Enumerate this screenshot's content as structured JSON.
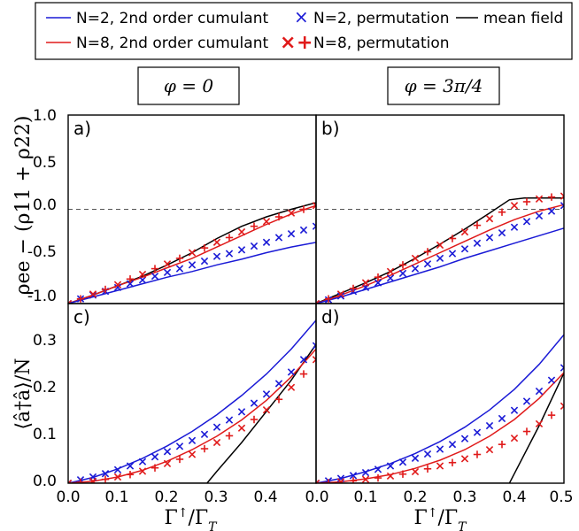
{
  "legend": {
    "entries": [
      {
        "label": "N=2, 2nd order cumulant",
        "kind": "line",
        "color": "#1a1ad6"
      },
      {
        "label": "N=2, permutation",
        "kind": "x",
        "color": "#1a1ad6"
      },
      {
        "label": "mean field",
        "kind": "line",
        "color": "#000000"
      },
      {
        "label": "N=8, 2nd order cumulant",
        "kind": "line",
        "color": "#e01a1a"
      },
      {
        "label": "N=8, permutation",
        "kind": "x+",
        "color": "#e01a1a"
      }
    ]
  },
  "columns": [
    {
      "phi_label": "φ = 0"
    },
    {
      "phi_label": "φ = 3π/4"
    }
  ],
  "axes": {
    "xlabel": "Γ↑/Γ_T",
    "xlabel_main": "Γ",
    "xlabel_sup": "↑",
    "xlabel_den": "/Γ",
    "xlabel_sub": "T",
    "ylabel_top": "ρee − (ρ11 + ρ22)",
    "ylabel_bottom": "⟨â†â⟩/N",
    "xticks_left": [
      "0.0",
      "0.1",
      "0.2",
      "0.3",
      "0.4",
      "0.0"
    ],
    "xticks_right": [
      "0.1",
      "0.2",
      "0.3",
      "0.4",
      "0.5"
    ],
    "yticks_top": [
      "1.0",
      "0.5",
      "0.0",
      "-0.5",
      "-1.0"
    ],
    "yticks_bottom": [
      "0.3",
      "0.2",
      "0.1",
      "0.0"
    ]
  },
  "chart_data": [
    {
      "panel": "a)",
      "type": "line",
      "xlim": [
        0,
        0.5
      ],
      "ylim": [
        -1.0,
        1.0
      ],
      "reference_line": 0.0,
      "series": [
        {
          "name": "mean field",
          "color": "#000000",
          "x": [
            0,
            0.05,
            0.1,
            0.15,
            0.2,
            0.25,
            0.28,
            0.3,
            0.35,
            0.4,
            0.45,
            0.5
          ],
          "y": [
            -1.0,
            -0.91,
            -0.81,
            -0.71,
            -0.59,
            -0.46,
            -0.37,
            -0.31,
            -0.18,
            -0.08,
            0.0,
            0.07
          ]
        },
        {
          "name": "N=8, 2nd order cumulant",
          "color": "#e01a1a",
          "x": [
            0,
            0.05,
            0.1,
            0.15,
            0.2,
            0.25,
            0.3,
            0.35,
            0.4,
            0.45,
            0.5
          ],
          "y": [
            -1.0,
            -0.91,
            -0.81,
            -0.72,
            -0.62,
            -0.52,
            -0.4,
            -0.28,
            -0.16,
            -0.05,
            0.04
          ]
        },
        {
          "name": "N=2, 2nd order cumulant",
          "color": "#1a1ad6",
          "x": [
            0,
            0.05,
            0.1,
            0.15,
            0.2,
            0.25,
            0.3,
            0.35,
            0.4,
            0.45,
            0.5
          ],
          "y": [
            -1.0,
            -0.93,
            -0.86,
            -0.79,
            -0.72,
            -0.66,
            -0.59,
            -0.53,
            -0.46,
            -0.4,
            -0.35
          ]
        },
        {
          "name": "N=2, permutation",
          "color": "#1a1ad6",
          "marker": "x",
          "x": [
            0.0,
            0.025,
            0.05,
            0.075,
            0.1,
            0.125,
            0.15,
            0.175,
            0.2,
            0.225,
            0.25,
            0.275,
            0.3,
            0.325,
            0.35,
            0.375,
            0.4,
            0.425,
            0.45,
            0.475,
            0.5
          ],
          "y": [
            -1.0,
            -0.95,
            -0.91,
            -0.87,
            -0.83,
            -0.79,
            -0.75,
            -0.71,
            -0.67,
            -0.63,
            -0.59,
            -0.55,
            -0.5,
            -0.47,
            -0.43,
            -0.39,
            -0.35,
            -0.3,
            -0.26,
            -0.22,
            -0.18
          ]
        },
        {
          "name": "N=8, permutation",
          "color": "#e01a1a",
          "marker": "x+",
          "x": [
            0.0,
            0.025,
            0.05,
            0.075,
            0.1,
            0.125,
            0.15,
            0.175,
            0.2,
            0.225,
            0.25,
            0.275,
            0.3,
            0.325,
            0.35,
            0.375,
            0.4,
            0.425,
            0.45,
            0.475,
            0.5
          ],
          "y": [
            -1.0,
            -0.95,
            -0.9,
            -0.85,
            -0.8,
            -0.74,
            -0.69,
            -0.63,
            -0.58,
            -0.52,
            -0.46,
            -0.41,
            -0.35,
            -0.3,
            -0.24,
            -0.18,
            -0.13,
            -0.08,
            -0.04,
            0.0,
            0.04
          ]
        }
      ]
    },
    {
      "panel": "b)",
      "type": "line",
      "xlim": [
        0,
        0.5
      ],
      "ylim": [
        -1.0,
        1.0
      ],
      "reference_line": 0.0,
      "series": [
        {
          "name": "mean field",
          "color": "#000000",
          "x": [
            0,
            0.05,
            0.1,
            0.15,
            0.2,
            0.25,
            0.3,
            0.35,
            0.39,
            0.42,
            0.45,
            0.5
          ],
          "y": [
            -1.0,
            -0.89,
            -0.78,
            -0.66,
            -0.52,
            -0.37,
            -0.21,
            -0.04,
            0.1,
            0.12,
            0.12,
            0.12
          ]
        },
        {
          "name": "N=8, 2nd order cumulant",
          "color": "#e01a1a",
          "x": [
            0,
            0.05,
            0.1,
            0.15,
            0.2,
            0.25,
            0.3,
            0.35,
            0.4,
            0.45,
            0.5
          ],
          "y": [
            -1.0,
            -0.91,
            -0.81,
            -0.7,
            -0.58,
            -0.46,
            -0.34,
            -0.22,
            -0.11,
            -0.02,
            0.05
          ]
        },
        {
          "name": "N=2, 2nd order cumulant",
          "color": "#1a1ad6",
          "x": [
            0,
            0.05,
            0.1,
            0.15,
            0.2,
            0.25,
            0.3,
            0.35,
            0.4,
            0.45,
            0.5
          ],
          "y": [
            -1.0,
            -0.93,
            -0.85,
            -0.77,
            -0.69,
            -0.61,
            -0.52,
            -0.44,
            -0.36,
            -0.28,
            -0.2
          ]
        },
        {
          "name": "N=2, permutation",
          "color": "#1a1ad6",
          "marker": "x",
          "x": [
            0.0,
            0.025,
            0.05,
            0.075,
            0.1,
            0.125,
            0.15,
            0.175,
            0.2,
            0.225,
            0.25,
            0.275,
            0.3,
            0.325,
            0.35,
            0.375,
            0.4,
            0.425,
            0.45,
            0.475,
            0.5
          ],
          "y": [
            -1.0,
            -0.96,
            -0.92,
            -0.87,
            -0.83,
            -0.78,
            -0.73,
            -0.68,
            -0.63,
            -0.58,
            -0.52,
            -0.47,
            -0.42,
            -0.36,
            -0.3,
            -0.25,
            -0.19,
            -0.13,
            -0.07,
            -0.02,
            0.04
          ]
        },
        {
          "name": "N=8, permutation",
          "color": "#e01a1a",
          "marker": "x+",
          "x": [
            0.0,
            0.025,
            0.05,
            0.075,
            0.1,
            0.125,
            0.15,
            0.175,
            0.2,
            0.225,
            0.25,
            0.275,
            0.3,
            0.325,
            0.35,
            0.375,
            0.4,
            0.425,
            0.45,
            0.475,
            0.5
          ],
          "y": [
            -1.0,
            -0.95,
            -0.9,
            -0.84,
            -0.78,
            -0.72,
            -0.66,
            -0.59,
            -0.52,
            -0.45,
            -0.38,
            -0.31,
            -0.24,
            -0.17,
            -0.1,
            -0.03,
            0.04,
            0.08,
            0.11,
            0.13,
            0.14
          ]
        }
      ]
    },
    {
      "panel": "c)",
      "type": "line",
      "xlim": [
        0,
        0.5
      ],
      "ylim": [
        0.0,
        0.375
      ],
      "series": [
        {
          "name": "mean field",
          "color": "#000000",
          "x": [
            0.0,
            0.28,
            0.3,
            0.35,
            0.4,
            0.45,
            0.5
          ],
          "y": [
            0.0,
            0.0,
            0.025,
            0.085,
            0.15,
            0.215,
            0.29
          ]
        },
        {
          "name": "N=2, 2nd order cumulant",
          "color": "#1a1ad6",
          "x": [
            0,
            0.05,
            0.1,
            0.15,
            0.2,
            0.25,
            0.3,
            0.35,
            0.4,
            0.45,
            0.5
          ],
          "y": [
            0.0,
            0.012,
            0.03,
            0.052,
            0.078,
            0.108,
            0.143,
            0.183,
            0.228,
            0.28,
            0.34
          ]
        },
        {
          "name": "N=8, 2nd order cumulant",
          "color": "#e01a1a",
          "x": [
            0,
            0.05,
            0.1,
            0.15,
            0.2,
            0.25,
            0.3,
            0.35,
            0.4,
            0.45,
            0.5
          ],
          "y": [
            0.0,
            0.004,
            0.013,
            0.027,
            0.046,
            0.07,
            0.098,
            0.132,
            0.173,
            0.222,
            0.28
          ]
        },
        {
          "name": "N=2, permutation",
          "color": "#1a1ad6",
          "marker": "x",
          "x": [
            0.0,
            0.025,
            0.05,
            0.075,
            0.1,
            0.125,
            0.15,
            0.175,
            0.2,
            0.225,
            0.25,
            0.275,
            0.3,
            0.325,
            0.35,
            0.375,
            0.4,
            0.425,
            0.45,
            0.475,
            0.5
          ],
          "y": [
            0.0,
            0.007,
            0.013,
            0.02,
            0.028,
            0.036,
            0.045,
            0.055,
            0.066,
            0.077,
            0.089,
            0.102,
            0.117,
            0.132,
            0.149,
            0.167,
            0.186,
            0.208,
            0.232,
            0.258,
            0.287
          ]
        },
        {
          "name": "N=8, permutation",
          "color": "#e01a1a",
          "marker": "x+",
          "x": [
            0.0,
            0.025,
            0.05,
            0.075,
            0.1,
            0.125,
            0.15,
            0.175,
            0.2,
            0.225,
            0.25,
            0.275,
            0.3,
            0.325,
            0.35,
            0.375,
            0.4,
            0.425,
            0.45,
            0.475,
            0.5
          ],
          "y": [
            0.0,
            0.002,
            0.004,
            0.008,
            0.013,
            0.018,
            0.025,
            0.032,
            0.041,
            0.05,
            0.06,
            0.072,
            0.085,
            0.099,
            0.115,
            0.133,
            0.153,
            0.175,
            0.2,
            0.228,
            0.258
          ]
        }
      ]
    },
    {
      "panel": "d)",
      "type": "line",
      "xlim": [
        0,
        0.5
      ],
      "ylim": [
        0.0,
        0.375
      ],
      "series": [
        {
          "name": "mean field",
          "color": "#000000",
          "x": [
            0.0,
            0.39,
            0.4,
            0.45,
            0.5
          ],
          "y": [
            0.0,
            0.0,
            0.02,
            0.12,
            0.23
          ]
        },
        {
          "name": "N=2, 2nd order cumulant",
          "color": "#1a1ad6",
          "x": [
            0,
            0.05,
            0.1,
            0.15,
            0.2,
            0.25,
            0.3,
            0.35,
            0.4,
            0.45,
            0.5
          ],
          "y": [
            0.0,
            0.01,
            0.024,
            0.041,
            0.062,
            0.087,
            0.117,
            0.153,
            0.196,
            0.248,
            0.31
          ]
        },
        {
          "name": "N=8, 2nd order cumulant",
          "color": "#e01a1a",
          "x": [
            0,
            0.05,
            0.1,
            0.15,
            0.2,
            0.25,
            0.3,
            0.35,
            0.4,
            0.45,
            0.5
          ],
          "y": [
            0.0,
            0.003,
            0.009,
            0.018,
            0.031,
            0.048,
            0.07,
            0.098,
            0.133,
            0.177,
            0.231
          ]
        },
        {
          "name": "N=2, permutation",
          "color": "#1a1ad6",
          "marker": "x",
          "x": [
            0.0,
            0.025,
            0.05,
            0.075,
            0.1,
            0.125,
            0.15,
            0.175,
            0.2,
            0.225,
            0.25,
            0.275,
            0.3,
            0.325,
            0.35,
            0.375,
            0.4,
            0.425,
            0.45,
            0.475,
            0.5
          ],
          "y": [
            0.0,
            0.005,
            0.01,
            0.016,
            0.022,
            0.029,
            0.036,
            0.044,
            0.052,
            0.061,
            0.071,
            0.081,
            0.093,
            0.106,
            0.12,
            0.135,
            0.152,
            0.171,
            0.192,
            0.215,
            0.241
          ]
        },
        {
          "name": "N=8, permutation",
          "color": "#e01a1a",
          "marker": "x+",
          "x": [
            0.0,
            0.025,
            0.05,
            0.075,
            0.1,
            0.125,
            0.15,
            0.175,
            0.2,
            0.225,
            0.25,
            0.275,
            0.3,
            0.325,
            0.35,
            0.375,
            0.4,
            0.425,
            0.45,
            0.475,
            0.5
          ],
          "y": [
            0.0,
            0.001,
            0.003,
            0.005,
            0.008,
            0.011,
            0.015,
            0.019,
            0.024,
            0.03,
            0.036,
            0.043,
            0.051,
            0.06,
            0.07,
            0.081,
            0.094,
            0.108,
            0.124,
            0.142,
            0.161
          ]
        }
      ]
    }
  ]
}
